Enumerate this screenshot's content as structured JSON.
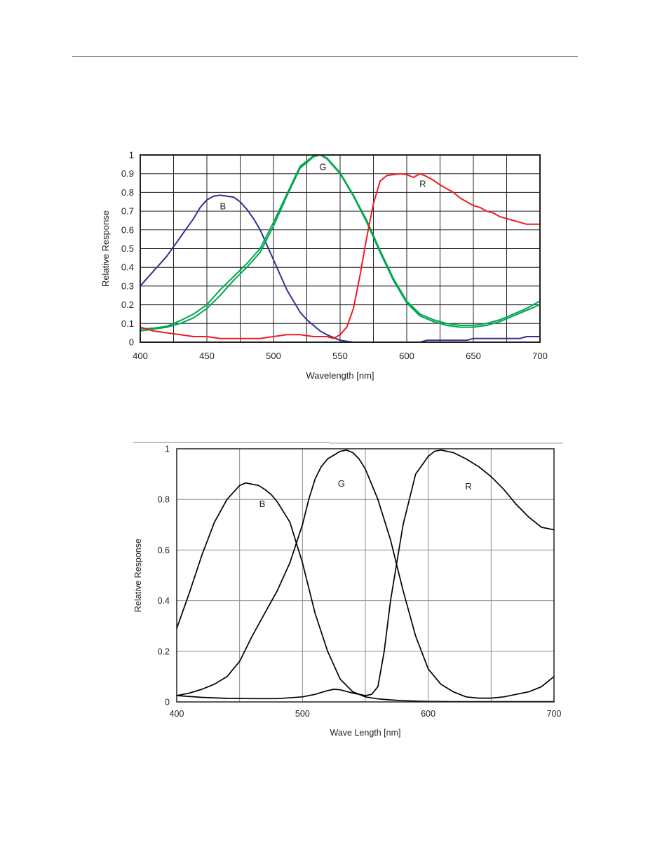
{
  "chart_data": [
    {
      "type": "line",
      "xlabel": "Wavelength [nm]",
      "ylabel": "Relative Response",
      "xlim": [
        400,
        700
      ],
      "ylim": [
        0,
        1
      ],
      "grid": true,
      "x_ticks": [
        "400",
        "450",
        "500",
        "550",
        "600",
        "650",
        "700"
      ],
      "y_ticks": [
        "0",
        "0.1",
        "0.2",
        "0.3",
        "0.4",
        "0.5",
        "0.6",
        "0.7",
        "0.8",
        "0.9",
        "1"
      ],
      "x_tick_values": [
        400,
        450,
        500,
        550,
        600,
        650,
        700
      ],
      "y_tick_values": [
        0,
        0.1,
        0.2,
        0.3,
        0.4,
        0.5,
        0.6,
        0.7,
        0.8,
        0.9,
        1
      ],
      "x_grid": [
        400,
        425,
        450,
        475,
        500,
        525,
        550,
        575,
        600,
        625,
        650,
        675,
        700
      ],
      "series": [
        {
          "name": "B",
          "color": "#2e3192",
          "x": [
            400,
            405,
            410,
            415,
            420,
            425,
            430,
            435,
            440,
            445,
            450,
            455,
            460,
            465,
            470,
            475,
            480,
            485,
            490,
            495,
            500,
            505,
            510,
            515,
            520,
            525,
            530,
            535,
            540,
            545,
            550,
            555,
            560,
            565,
            570,
            575,
            580,
            585,
            590,
            595,
            600,
            605,
            610,
            615,
            620,
            625,
            630,
            635,
            640,
            645,
            650,
            655,
            660,
            665,
            670,
            675,
            680,
            685,
            690,
            695,
            700
          ],
          "y": [
            0.3,
            0.34,
            0.38,
            0.42,
            0.46,
            0.51,
            0.56,
            0.61,
            0.66,
            0.72,
            0.76,
            0.78,
            0.785,
            0.78,
            0.775,
            0.75,
            0.71,
            0.66,
            0.6,
            0.52,
            0.44,
            0.36,
            0.28,
            0.22,
            0.16,
            0.12,
            0.09,
            0.06,
            0.04,
            0.025,
            0.01,
            0.005,
            0.0,
            0.0,
            0.0,
            0.0,
            0.0,
            0.0,
            0.0,
            0.0,
            0.0,
            0.0,
            0.0,
            0.01,
            0.01,
            0.01,
            0.01,
            0.01,
            0.01,
            0.01,
            0.02,
            0.02,
            0.02,
            0.02,
            0.02,
            0.02,
            0.02,
            0.02,
            0.03,
            0.03,
            0.03
          ]
        },
        {
          "name": "G",
          "color": "#00a651",
          "x": [
            400,
            410,
            420,
            430,
            440,
            450,
            460,
            470,
            480,
            490,
            500,
            510,
            520,
            530,
            535,
            540,
            550,
            560,
            570,
            580,
            590,
            600,
            610,
            620,
            630,
            640,
            650,
            660,
            670,
            680,
            690,
            700
          ],
          "y": [
            0.06,
            0.07,
            0.08,
            0.1,
            0.13,
            0.18,
            0.25,
            0.33,
            0.4,
            0.48,
            0.62,
            0.78,
            0.93,
            0.99,
            1.0,
            0.98,
            0.9,
            0.78,
            0.64,
            0.48,
            0.33,
            0.21,
            0.14,
            0.11,
            0.09,
            0.08,
            0.08,
            0.09,
            0.11,
            0.14,
            0.17,
            0.2
          ]
        },
        {
          "name": "G",
          "color": "#00a651",
          "x": [
            400,
            410,
            420,
            430,
            440,
            450,
            460,
            470,
            480,
            490,
            500,
            510,
            520,
            530,
            535,
            540,
            550,
            560,
            570,
            580,
            590,
            600,
            610,
            620,
            630,
            640,
            650,
            660,
            670,
            680,
            690,
            700
          ],
          "y": [
            0.07,
            0.075,
            0.085,
            0.115,
            0.15,
            0.2,
            0.28,
            0.35,
            0.42,
            0.5,
            0.64,
            0.79,
            0.94,
            0.995,
            1.0,
            0.985,
            0.905,
            0.785,
            0.65,
            0.49,
            0.34,
            0.22,
            0.15,
            0.12,
            0.1,
            0.09,
            0.09,
            0.1,
            0.12,
            0.15,
            0.18,
            0.22
          ]
        },
        {
          "name": "R",
          "color": "#ed1c24",
          "x": [
            400,
            410,
            420,
            430,
            440,
            450,
            460,
            470,
            480,
            490,
            500,
            510,
            520,
            530,
            540,
            545,
            550,
            555,
            560,
            565,
            570,
            575,
            580,
            585,
            590,
            595,
            600,
            605,
            610,
            615,
            620,
            625,
            630,
            635,
            640,
            645,
            650,
            655,
            660,
            665,
            670,
            675,
            680,
            685,
            690,
            695,
            700
          ],
          "y": [
            0.08,
            0.06,
            0.05,
            0.04,
            0.03,
            0.03,
            0.02,
            0.02,
            0.02,
            0.02,
            0.03,
            0.04,
            0.04,
            0.03,
            0.03,
            0.02,
            0.04,
            0.08,
            0.18,
            0.36,
            0.56,
            0.74,
            0.86,
            0.89,
            0.895,
            0.9,
            0.895,
            0.88,
            0.9,
            0.885,
            0.865,
            0.84,
            0.82,
            0.8,
            0.77,
            0.75,
            0.73,
            0.72,
            0.7,
            0.69,
            0.67,
            0.66,
            0.65,
            0.64,
            0.63,
            0.63,
            0.63
          ]
        }
      ],
      "annotations": [
        {
          "text": "B",
          "x": 462,
          "y": 0.71
        },
        {
          "text": "G",
          "x": 537,
          "y": 0.92
        },
        {
          "text": "R",
          "x": 612,
          "y": 0.83
        }
      ]
    },
    {
      "type": "line",
      "xlabel": "Wave Length [nm]",
      "ylabel": "Relative Response",
      "xlim": [
        400,
        700
      ],
      "ylim": [
        0,
        1
      ],
      "grid": true,
      "x_ticks": [
        "400",
        "500",
        "600",
        "700"
      ],
      "y_ticks": [
        "0",
        "0.2",
        "0.4",
        "0.6",
        "0.8",
        "1"
      ],
      "x_tick_values": [
        400,
        500,
        600,
        700
      ],
      "y_tick_values": [
        0,
        0.2,
        0.4,
        0.6,
        0.8,
        1
      ],
      "x_grid": [
        400,
        450,
        500,
        550,
        600,
        650,
        700
      ],
      "series": [
        {
          "name": "B",
          "color": "#000000",
          "x": [
            400,
            410,
            420,
            430,
            440,
            450,
            455,
            460,
            465,
            470,
            475,
            480,
            490,
            500,
            510,
            520,
            530,
            540,
            550,
            560,
            570,
            580,
            590,
            600,
            620,
            640,
            660,
            680,
            700
          ],
          "y": [
            0.29,
            0.43,
            0.58,
            0.71,
            0.8,
            0.855,
            0.865,
            0.86,
            0.855,
            0.84,
            0.82,
            0.79,
            0.71,
            0.55,
            0.35,
            0.2,
            0.09,
            0.04,
            0.02,
            0.012,
            0.008,
            0.005,
            0.003,
            0.002,
            0.001,
            0.001,
            0.001,
            0.001,
            0.001
          ]
        },
        {
          "name": "G",
          "color": "#000000",
          "x": [
            400,
            410,
            420,
            430,
            440,
            450,
            460,
            470,
            480,
            490,
            500,
            505,
            510,
            515,
            520,
            530,
            535,
            540,
            545,
            550,
            560,
            570,
            580,
            590,
            600,
            610,
            620,
            630,
            640,
            650,
            660,
            670,
            680,
            690,
            700
          ],
          "y": [
            0.025,
            0.035,
            0.05,
            0.07,
            0.1,
            0.16,
            0.26,
            0.35,
            0.44,
            0.55,
            0.7,
            0.8,
            0.88,
            0.93,
            0.96,
            0.99,
            0.995,
            0.985,
            0.96,
            0.92,
            0.8,
            0.64,
            0.44,
            0.26,
            0.13,
            0.07,
            0.04,
            0.02,
            0.015,
            0.015,
            0.02,
            0.03,
            0.04,
            0.06,
            0.1
          ]
        },
        {
          "name": "R",
          "color": "#000000",
          "x": [
            400,
            420,
            440,
            460,
            480,
            500,
            510,
            520,
            525,
            530,
            540,
            550,
            555,
            560,
            565,
            570,
            580,
            590,
            600,
            605,
            610,
            620,
            630,
            640,
            650,
            660,
            670,
            680,
            690,
            700
          ],
          "y": [
            0.025,
            0.018,
            0.014,
            0.013,
            0.013,
            0.02,
            0.03,
            0.045,
            0.05,
            0.048,
            0.035,
            0.025,
            0.03,
            0.06,
            0.2,
            0.4,
            0.7,
            0.9,
            0.97,
            0.99,
            0.995,
            0.985,
            0.96,
            0.93,
            0.89,
            0.84,
            0.78,
            0.73,
            0.69,
            0.68
          ]
        }
      ],
      "annotations": [
        {
          "text": "B",
          "x": 468,
          "y": 0.77
        },
        {
          "text": "G",
          "x": 531,
          "y": 0.85
        },
        {
          "text": "R",
          "x": 632,
          "y": 0.84
        }
      ]
    }
  ]
}
